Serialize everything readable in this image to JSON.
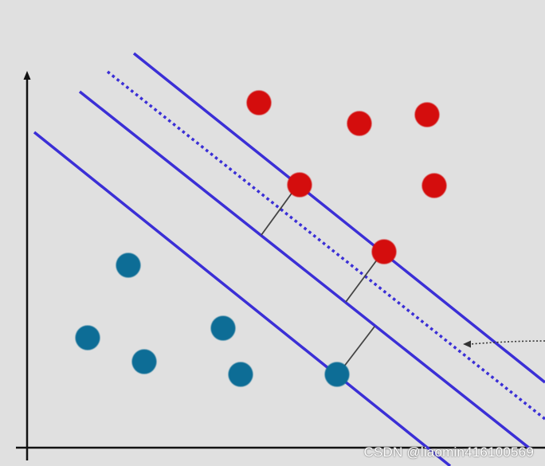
{
  "watermark": "CSDN @liaomin416100569",
  "colors": {
    "background": "#e0e0e0",
    "axis": "#111111",
    "separator_line": "#3b2fd6",
    "class_positive": "#d40b0b",
    "class_negative": "#0a6d96",
    "margin_segment": "#444444",
    "pointer": "#333333"
  },
  "legend": {
    "class_positive": "red points",
    "class_negative": "blue points"
  },
  "icons": {
    "axis_arrow": "arrow-up-icon",
    "pointer_arrow": "arrow-left-icon"
  }
}
